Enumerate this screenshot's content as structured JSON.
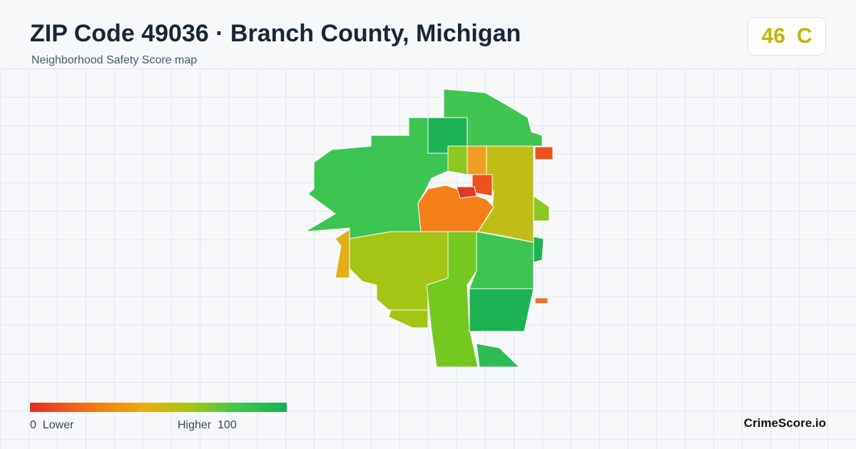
{
  "header": {
    "title": "ZIP Code 49036 · Branch County, Michigan",
    "subtitle": "Neighborhood Safety Score map"
  },
  "score": {
    "value": 46,
    "grade": "C"
  },
  "legend": {
    "min": 0,
    "min_label": "Lower",
    "max_label": "Higher",
    "max": 100
  },
  "brand": "CrimeScore.io"
}
